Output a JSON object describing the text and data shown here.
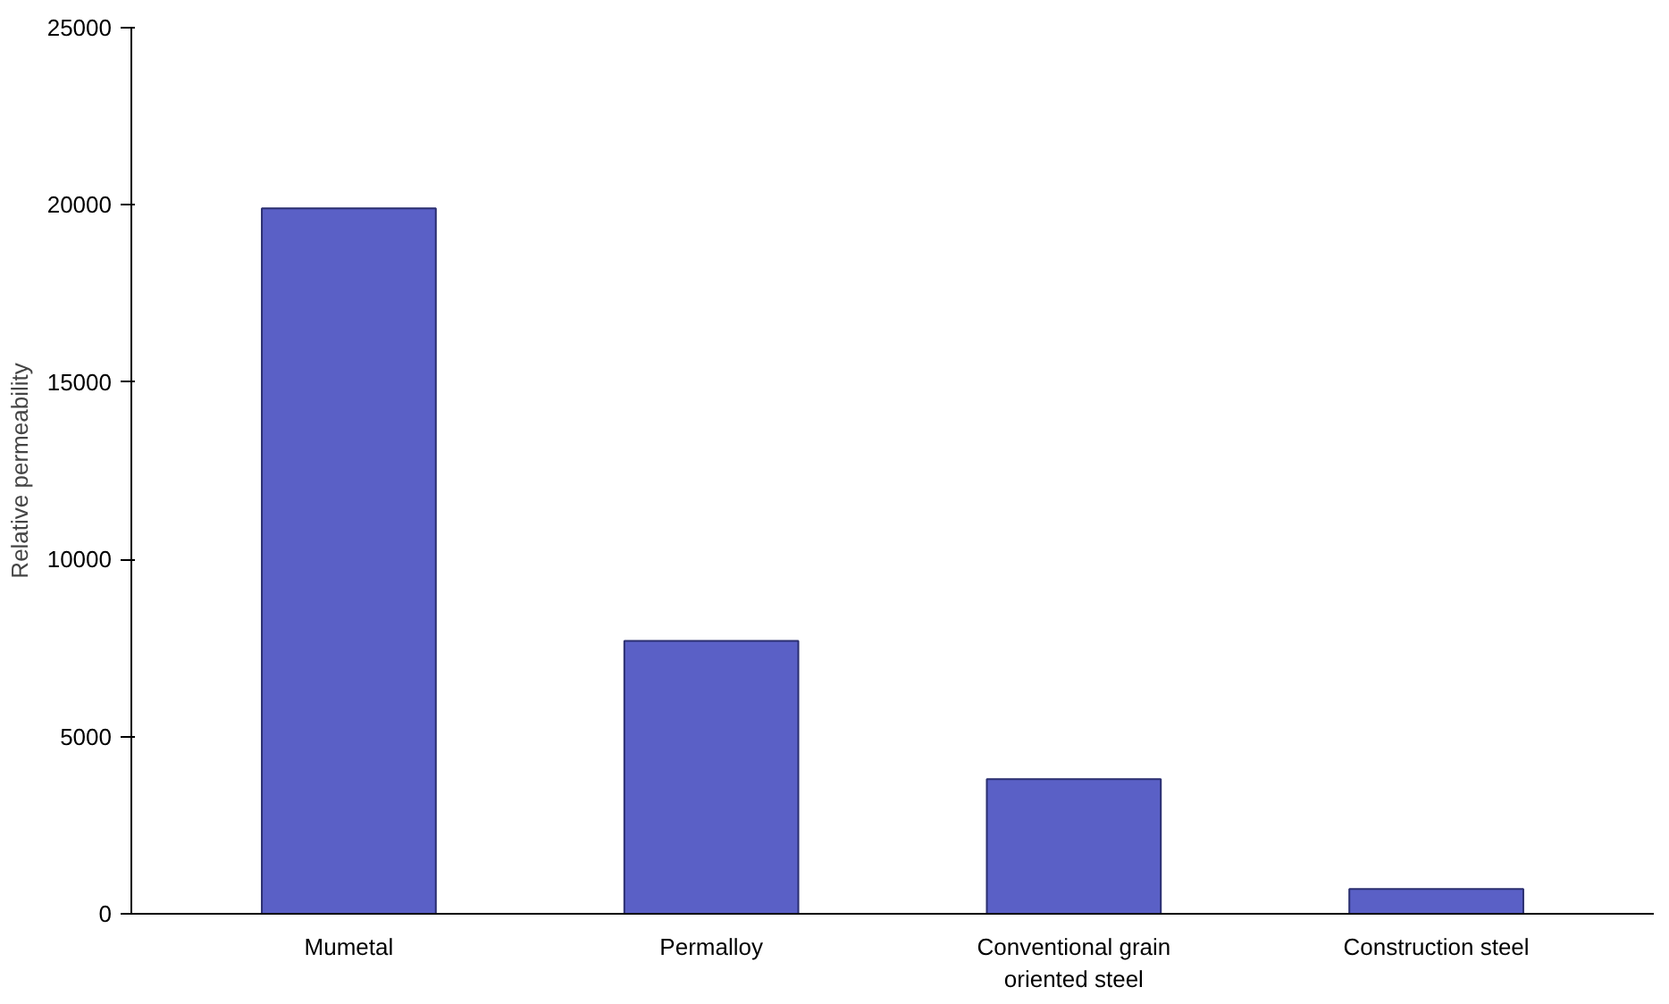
{
  "chart_data": {
    "type": "bar",
    "ylabel": "Relative permeability",
    "categories": [
      "Mumetal",
      "Permalloy",
      "Conventional grain\noriented steel",
      "Construction steel"
    ],
    "values": [
      19900,
      7700,
      3800,
      700
    ],
    "color": "#5a60c6",
    "ylim": [
      0,
      25000
    ],
    "yticks": [
      0,
      5000,
      10000,
      15000,
      20000,
      25000
    ],
    "grid": false
  }
}
